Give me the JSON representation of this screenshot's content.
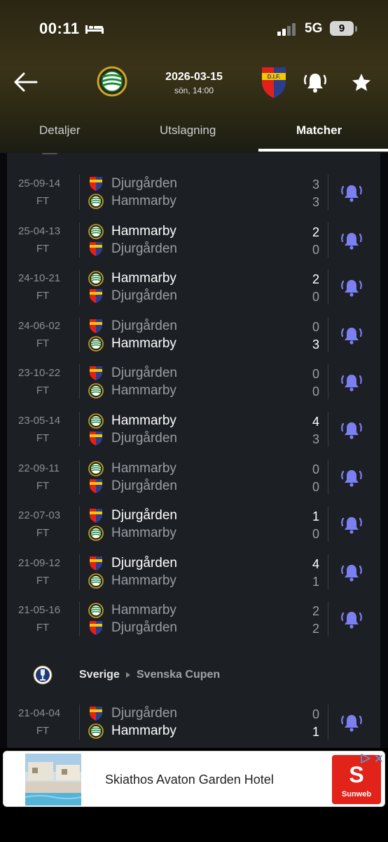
{
  "status_bar": {
    "time": "00:11",
    "network": "5G",
    "battery": "9"
  },
  "match_header": {
    "date": "2026-03-15",
    "kickoff": "sön, 14:00"
  },
  "tabs": [
    {
      "label": "Detaljer",
      "active": false
    },
    {
      "label": "Utslagning",
      "active": false
    },
    {
      "label": "Matcher",
      "active": true
    }
  ],
  "matches": [
    {
      "date": "25-09-14",
      "status": "FT",
      "team1": "Djurgården",
      "team2": "Hammarby",
      "score1": "3",
      "score2": "3",
      "winner": 0
    },
    {
      "date": "25-04-13",
      "status": "FT",
      "team1": "Hammarby",
      "team2": "Djurgården",
      "score1": "2",
      "score2": "0",
      "winner": 1
    },
    {
      "date": "24-10-21",
      "status": "FT",
      "team1": "Hammarby",
      "team2": "Djurgården",
      "score1": "2",
      "score2": "0",
      "winner": 1
    },
    {
      "date": "24-06-02",
      "status": "FT",
      "team1": "Djurgården",
      "team2": "Hammarby",
      "score1": "0",
      "score2": "3",
      "winner": 2
    },
    {
      "date": "23-10-22",
      "status": "FT",
      "team1": "Djurgården",
      "team2": "Hammarby",
      "score1": "0",
      "score2": "0",
      "winner": 0
    },
    {
      "date": "23-05-14",
      "status": "FT",
      "team1": "Hammarby",
      "team2": "Djurgården",
      "score1": "4",
      "score2": "3",
      "winner": 1
    },
    {
      "date": "22-09-11",
      "status": "FT",
      "team1": "Hammarby",
      "team2": "Djurgården",
      "score1": "0",
      "score2": "0",
      "winner": 0
    },
    {
      "date": "22-07-03",
      "status": "FT",
      "team1": "Djurgården",
      "team2": "Hammarby",
      "score1": "1",
      "score2": "0",
      "winner": 1
    },
    {
      "date": "21-09-12",
      "status": "FT",
      "team1": "Djurgården",
      "team2": "Hammarby",
      "score1": "4",
      "score2": "1",
      "winner": 1
    },
    {
      "date": "21-05-16",
      "status": "FT",
      "team1": "Hammarby",
      "team2": "Djurgården",
      "score1": "2",
      "score2": "2",
      "winner": 0
    }
  ],
  "competition": {
    "country": "Sverige",
    "name": "Svenska Cupen"
  },
  "cup_matches": [
    {
      "date": "21-04-04",
      "status": "FT",
      "team1": "Djurgården",
      "team2": "Hammarby",
      "score1": "0",
      "score2": "1",
      "winner": 2
    }
  ],
  "ad": {
    "text": "Skiathos Avaton Garden Hotel",
    "brand_letter": "S",
    "brand": "Sunweb"
  },
  "colors": {
    "bell_accent": "#7b7ff0",
    "brand_red": "#e2231a",
    "hammarby_green": "#1e8a3c",
    "djurgarden_blue": "#2b3d8f"
  }
}
